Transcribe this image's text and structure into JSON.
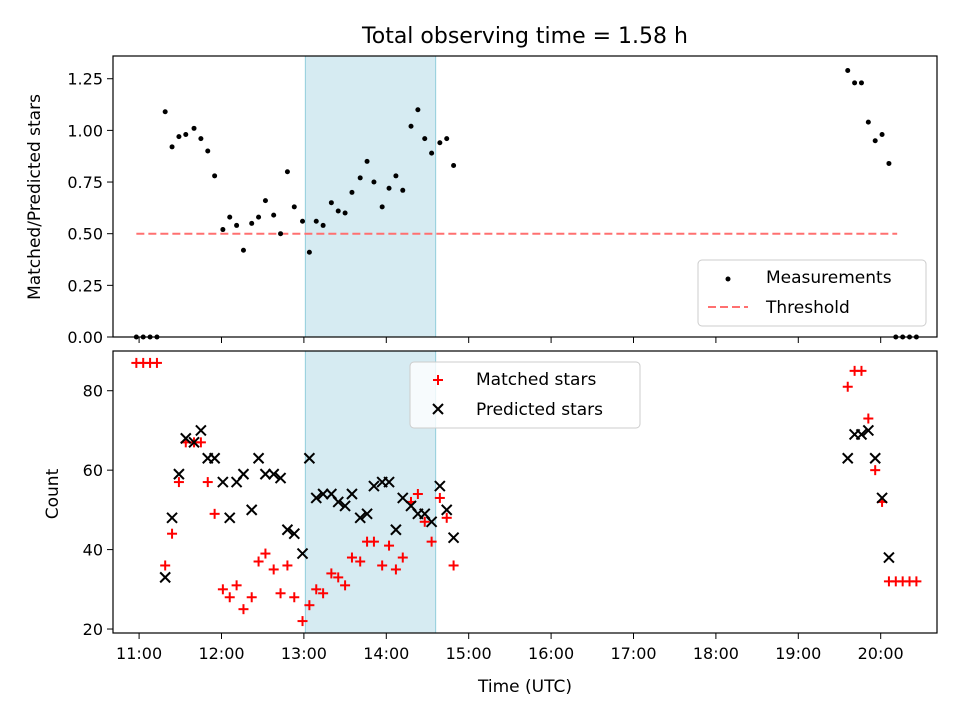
{
  "chart_data": {
    "type": "scatter",
    "title": "Total observing time = 1.58 h",
    "xlabel": "Time (UTC)",
    "x_ticks": [
      "11:00",
      "12:00",
      "13:00",
      "14:00",
      "15:00",
      "16:00",
      "17:00",
      "18:00",
      "19:00",
      "20:00"
    ],
    "xlim": [
      "10:41",
      "20:41"
    ],
    "shaded_span": {
      "start": "13:01",
      "end": "14:36",
      "color": "#add8e6"
    },
    "top": {
      "ylabel": "Matched/Predicted stars",
      "ylim": [
        0,
        1.36
      ],
      "y_ticks": [
        "0.00",
        "0.25",
        "0.50",
        "0.75",
        "1.00",
        "1.25"
      ],
      "legend": {
        "position": "lower-right",
        "entries": [
          "Measurements",
          "Threshold"
        ]
      },
      "threshold": {
        "name": "Threshold",
        "value": 0.5,
        "x_start": "10:58",
        "x_end": "20:12",
        "color": "#ff7070"
      },
      "series": [
        {
          "name": "Measurements",
          "color": "#000000",
          "points": [
            [
              "10:58",
              0.0
            ],
            [
              "11:03",
              0.0
            ],
            [
              "11:08",
              0.0
            ],
            [
              "11:13",
              0.0
            ],
            [
              "11:19",
              1.09
            ],
            [
              "11:24",
              0.92
            ],
            [
              "11:29",
              0.97
            ],
            [
              "11:34",
              0.98
            ],
            [
              "11:40",
              1.01
            ],
            [
              "11:45",
              0.96
            ],
            [
              "11:50",
              0.9
            ],
            [
              "11:55",
              0.78
            ],
            [
              "12:01",
              0.52
            ],
            [
              "12:06",
              0.58
            ],
            [
              "12:11",
              0.54
            ],
            [
              "12:16",
              0.42
            ],
            [
              "12:22",
              0.55
            ],
            [
              "12:27",
              0.58
            ],
            [
              "12:32",
              0.66
            ],
            [
              "12:38",
              0.59
            ],
            [
              "12:43",
              0.5
            ],
            [
              "12:48",
              0.8
            ],
            [
              "12:53",
              0.63
            ],
            [
              "12:59",
              0.56
            ],
            [
              "13:04",
              0.41
            ],
            [
              "13:09",
              0.56
            ],
            [
              "13:14",
              0.54
            ],
            [
              "13:20",
              0.65
            ],
            [
              "13:25",
              0.61
            ],
            [
              "13:30",
              0.6
            ],
            [
              "13:35",
              0.7
            ],
            [
              "13:41",
              0.77
            ],
            [
              "13:46",
              0.85
            ],
            [
              "13:51",
              0.75
            ],
            [
              "13:57",
              0.63
            ],
            [
              "14:02",
              0.72
            ],
            [
              "14:07",
              0.78
            ],
            [
              "14:12",
              0.71
            ],
            [
              "14:18",
              1.02
            ],
            [
              "14:23",
              1.1
            ],
            [
              "14:28",
              0.96
            ],
            [
              "14:33",
              0.89
            ],
            [
              "14:39",
              0.94
            ],
            [
              "14:44",
              0.96
            ],
            [
              "14:49",
              0.83
            ],
            [
              "19:36",
              1.29
            ],
            [
              "19:41",
              1.23
            ],
            [
              "19:46",
              1.23
            ],
            [
              "19:51",
              1.04
            ],
            [
              "19:56",
              0.95
            ],
            [
              "20:01",
              0.98
            ],
            [
              "20:06",
              0.84
            ],
            [
              "20:11",
              0.0
            ],
            [
              "20:16",
              0.0
            ],
            [
              "20:21",
              0.0
            ],
            [
              "20:26",
              0.0
            ]
          ]
        }
      ]
    },
    "bottom": {
      "ylabel": "Count",
      "ylim": [
        19,
        90
      ],
      "y_ticks": [
        "20",
        "40",
        "60",
        "80"
      ],
      "legend": {
        "position": "upper-center",
        "entries": [
          "Matched stars",
          "Predicted stars"
        ]
      },
      "series": [
        {
          "name": "Matched stars",
          "marker": "plus",
          "color": "#ff0000",
          "points": [
            [
              "10:58",
              87
            ],
            [
              "11:03",
              87
            ],
            [
              "11:08",
              87
            ],
            [
              "11:13",
              87
            ],
            [
              "11:19",
              36
            ],
            [
              "11:24",
              44
            ],
            [
              "11:29",
              57
            ],
            [
              "11:34",
              67
            ],
            [
              "11:40",
              67
            ],
            [
              "11:45",
              67
            ],
            [
              "11:50",
              57
            ],
            [
              "11:55",
              49
            ],
            [
              "12:01",
              30
            ],
            [
              "12:06",
              28
            ],
            [
              "12:11",
              31
            ],
            [
              "12:16",
              25
            ],
            [
              "12:22",
              28
            ],
            [
              "12:27",
              37
            ],
            [
              "12:32",
              39
            ],
            [
              "12:38",
              35
            ],
            [
              "12:43",
              29
            ],
            [
              "12:48",
              36
            ],
            [
              "12:53",
              28
            ],
            [
              "12:59",
              22
            ],
            [
              "13:04",
              26
            ],
            [
              "13:09",
              30
            ],
            [
              "13:14",
              29
            ],
            [
              "13:20",
              34
            ],
            [
              "13:25",
              33
            ],
            [
              "13:30",
              31
            ],
            [
              "13:35",
              38
            ],
            [
              "13:41",
              37
            ],
            [
              "13:46",
              42
            ],
            [
              "13:51",
              42
            ],
            [
              "13:57",
              36
            ],
            [
              "14:02",
              41
            ],
            [
              "14:07",
              35
            ],
            [
              "14:12",
              38
            ],
            [
              "14:18",
              52
            ],
            [
              "14:23",
              54
            ],
            [
              "14:28",
              47
            ],
            [
              "14:33",
              42
            ],
            [
              "14:39",
              53
            ],
            [
              "14:44",
              48
            ],
            [
              "14:49",
              36
            ],
            [
              "19:36",
              81
            ],
            [
              "19:41",
              85
            ],
            [
              "19:46",
              85
            ],
            [
              "19:51",
              73
            ],
            [
              "19:56",
              60
            ],
            [
              "20:01",
              52
            ],
            [
              "20:06",
              32
            ],
            [
              "20:11",
              32
            ],
            [
              "20:16",
              32
            ],
            [
              "20:21",
              32
            ],
            [
              "20:26",
              32
            ]
          ]
        },
        {
          "name": "Predicted stars",
          "marker": "x",
          "color": "#000000",
          "points": [
            [
              "11:19",
              33
            ],
            [
              "11:24",
              48
            ],
            [
              "11:29",
              59
            ],
            [
              "11:34",
              68
            ],
            [
              "11:40",
              67
            ],
            [
              "11:45",
              70
            ],
            [
              "11:50",
              63
            ],
            [
              "11:55",
              63
            ],
            [
              "12:01",
              57
            ],
            [
              "12:06",
              48
            ],
            [
              "12:11",
              57
            ],
            [
              "12:16",
              59
            ],
            [
              "12:22",
              50
            ],
            [
              "12:27",
              63
            ],
            [
              "12:32",
              59
            ],
            [
              "12:38",
              59
            ],
            [
              "12:43",
              58
            ],
            [
              "12:48",
              45
            ],
            [
              "12:53",
              44
            ],
            [
              "12:59",
              39
            ],
            [
              "13:04",
              63
            ],
            [
              "13:09",
              53
            ],
            [
              "13:14",
              54
            ],
            [
              "13:20",
              54
            ],
            [
              "13:25",
              52
            ],
            [
              "13:30",
              51
            ],
            [
              "13:35",
              54
            ],
            [
              "13:41",
              48
            ],
            [
              "13:46",
              49
            ],
            [
              "13:51",
              56
            ],
            [
              "13:57",
              57
            ],
            [
              "14:02",
              57
            ],
            [
              "14:07",
              45
            ],
            [
              "14:12",
              53
            ],
            [
              "14:18",
              51
            ],
            [
              "14:23",
              49
            ],
            [
              "14:28",
              49
            ],
            [
              "14:33",
              47
            ],
            [
              "14:39",
              56
            ],
            [
              "14:44",
              50
            ],
            [
              "14:49",
              43
            ],
            [
              "19:36",
              63
            ],
            [
              "19:41",
              69
            ],
            [
              "19:46",
              69
            ],
            [
              "19:51",
              70
            ],
            [
              "19:56",
              63
            ],
            [
              "20:01",
              53
            ],
            [
              "20:06",
              38
            ]
          ]
        }
      ]
    }
  }
}
